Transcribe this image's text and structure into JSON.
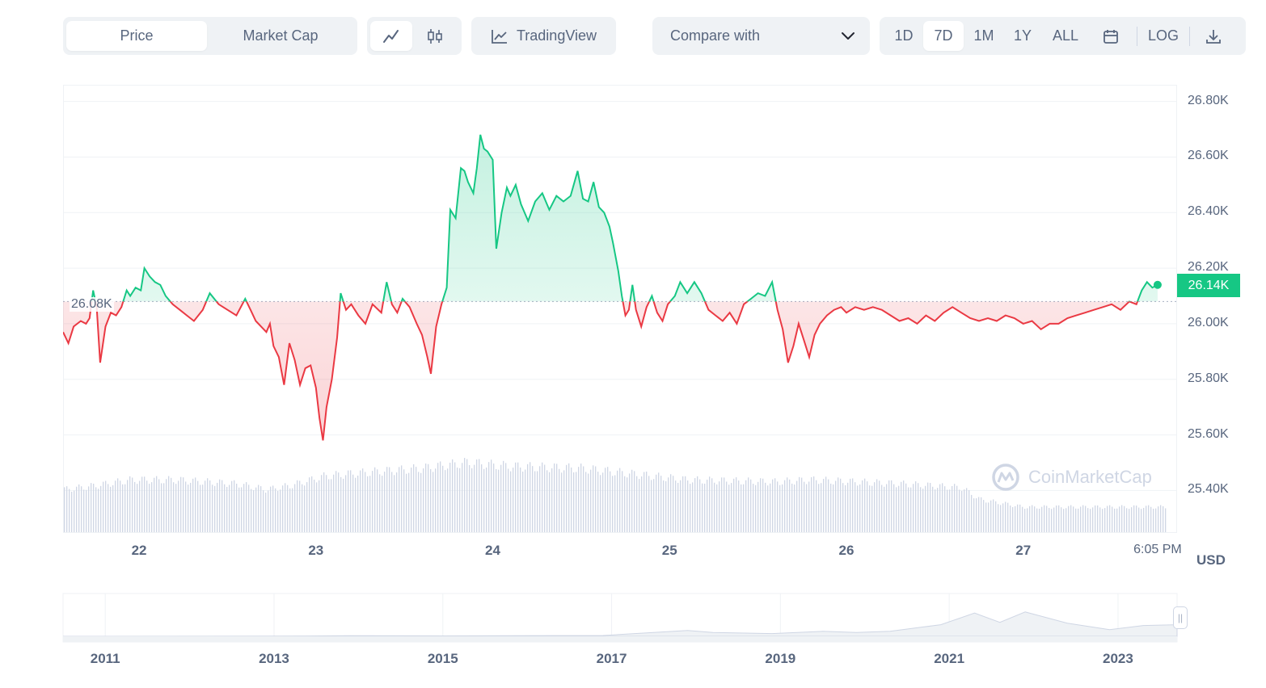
{
  "toolbar": {
    "metric_tabs": [
      {
        "label": "Price",
        "active": true
      },
      {
        "label": "Market Cap",
        "active": false
      }
    ],
    "chart_types": [
      {
        "icon": "line-chart-icon",
        "active": true
      },
      {
        "icon": "candlestick-icon",
        "active": false
      }
    ],
    "tradingview_label": "TradingView",
    "compare_label": "Compare with",
    "ranges": [
      {
        "label": "1D",
        "active": false
      },
      {
        "label": "7D",
        "active": true
      },
      {
        "label": "1M",
        "active": false
      },
      {
        "label": "1Y",
        "active": false
      },
      {
        "label": "ALL",
        "active": false
      }
    ],
    "log_label": "LOG"
  },
  "watermark": "CoinMarketCap",
  "current_price_label": "26.14K",
  "reference_price_label": "26.08K",
  "currency_label": "USD",
  "colors": {
    "up": "#16c784",
    "down": "#ea3943",
    "volume": "#cfd6e4",
    "tag": "#16c784"
  },
  "chart_data": {
    "type": "line",
    "reference_price": 26080,
    "current_price": 26140,
    "ylim": [
      25250,
      26860
    ],
    "yticks": [
      "26.80K",
      "26.60K",
      "26.40K",
      "26.20K",
      "26.00K",
      "25.80K",
      "25.60K",
      "25.40K"
    ],
    "ytick_values": [
      26800,
      26600,
      26400,
      26200,
      26000,
      25800,
      25600,
      25400
    ],
    "xlim": [
      21.57,
      27.87
    ],
    "xticks": [
      {
        "label": "22",
        "t": 22
      },
      {
        "label": "23",
        "t": 23
      },
      {
        "label": "24",
        "t": 24
      },
      {
        "label": "25",
        "t": 25
      },
      {
        "label": "26",
        "t": 26
      },
      {
        "label": "27",
        "t": 27
      },
      {
        "label": "6:05 PM",
        "t": 27.76
      }
    ],
    "series": [
      {
        "points": [
          [
            21.57,
            25970
          ],
          [
            21.6,
            25930
          ],
          [
            21.63,
            25990
          ],
          [
            21.67,
            26010
          ],
          [
            21.7,
            26000
          ],
          [
            21.72,
            26020
          ],
          [
            21.74,
            26120
          ],
          [
            21.76,
            26060
          ],
          [
            21.78,
            25860
          ],
          [
            21.81,
            25990
          ],
          [
            21.84,
            26040
          ],
          [
            21.87,
            26030
          ],
          [
            21.9,
            26060
          ],
          [
            21.93,
            26120
          ],
          [
            21.95,
            26100
          ],
          [
            21.98,
            26130
          ],
          [
            22.01,
            26120
          ],
          [
            22.03,
            26200
          ],
          [
            22.06,
            26170
          ],
          [
            22.09,
            26150
          ],
          [
            22.12,
            26140
          ],
          [
            22.15,
            26100
          ],
          [
            22.19,
            26070
          ],
          [
            22.23,
            26050
          ],
          [
            22.27,
            26030
          ],
          [
            22.31,
            26010
          ],
          [
            22.36,
            26050
          ],
          [
            22.4,
            26110
          ],
          [
            22.45,
            26070
          ],
          [
            22.5,
            26050
          ],
          [
            22.55,
            26030
          ],
          [
            22.6,
            26090
          ],
          [
            22.63,
            26050
          ],
          [
            22.66,
            26010
          ],
          [
            22.69,
            25990
          ],
          [
            22.72,
            25970
          ],
          [
            22.74,
            26000
          ],
          [
            22.76,
            25920
          ],
          [
            22.79,
            25880
          ],
          [
            22.82,
            25780
          ],
          [
            22.85,
            25930
          ],
          [
            22.88,
            25870
          ],
          [
            22.91,
            25780
          ],
          [
            22.94,
            25840
          ],
          [
            22.97,
            25850
          ],
          [
            23.0,
            25770
          ],
          [
            23.02,
            25660
          ],
          [
            23.04,
            25580
          ],
          [
            23.06,
            25700
          ],
          [
            23.09,
            25800
          ],
          [
            23.12,
            25950
          ],
          [
            23.14,
            26110
          ],
          [
            23.17,
            26050
          ],
          [
            23.2,
            26070
          ],
          [
            23.24,
            26030
          ],
          [
            23.28,
            26000
          ],
          [
            23.32,
            26070
          ],
          [
            23.37,
            26040
          ],
          [
            23.4,
            26150
          ],
          [
            23.43,
            26070
          ],
          [
            23.46,
            26040
          ],
          [
            23.49,
            26090
          ],
          [
            23.53,
            26060
          ],
          [
            23.57,
            26000
          ],
          [
            23.6,
            25960
          ],
          [
            23.63,
            25880
          ],
          [
            23.65,
            25820
          ],
          [
            23.68,
            25990
          ],
          [
            23.71,
            26070
          ],
          [
            23.74,
            26130
          ],
          [
            23.76,
            26410
          ],
          [
            23.79,
            26380
          ],
          [
            23.82,
            26560
          ],
          [
            23.84,
            26550
          ],
          [
            23.86,
            26510
          ],
          [
            23.89,
            26470
          ],
          [
            23.91,
            26560
          ],
          [
            23.93,
            26680
          ],
          [
            23.95,
            26630
          ],
          [
            23.97,
            26620
          ],
          [
            24.0,
            26590
          ],
          [
            24.02,
            26270
          ],
          [
            24.05,
            26400
          ],
          [
            24.08,
            26490
          ],
          [
            24.1,
            26460
          ],
          [
            24.13,
            26500
          ],
          [
            24.16,
            26430
          ],
          [
            24.2,
            26370
          ],
          [
            24.24,
            26440
          ],
          [
            24.28,
            26470
          ],
          [
            24.32,
            26410
          ],
          [
            24.36,
            26460
          ],
          [
            24.4,
            26440
          ],
          [
            24.44,
            26460
          ],
          [
            24.48,
            26550
          ],
          [
            24.51,
            26450
          ],
          [
            24.54,
            26440
          ],
          [
            24.57,
            26510
          ],
          [
            24.6,
            26420
          ],
          [
            24.63,
            26400
          ],
          [
            24.66,
            26350
          ],
          [
            24.68,
            26290
          ],
          [
            24.71,
            26190
          ],
          [
            24.73,
            26100
          ],
          [
            24.75,
            26030
          ],
          [
            24.77,
            26050
          ],
          [
            24.79,
            26140
          ],
          [
            24.81,
            26050
          ],
          [
            24.84,
            25990
          ],
          [
            24.87,
            26060
          ],
          [
            24.9,
            26100
          ],
          [
            24.93,
            26040
          ],
          [
            24.96,
            26010
          ],
          [
            24.99,
            26070
          ],
          [
            25.03,
            26100
          ],
          [
            25.06,
            26150
          ],
          [
            25.1,
            26110
          ],
          [
            25.14,
            26150
          ],
          [
            25.18,
            26110
          ],
          [
            25.22,
            26050
          ],
          [
            25.26,
            26030
          ],
          [
            25.3,
            26010
          ],
          [
            25.34,
            26040
          ],
          [
            25.38,
            26000
          ],
          [
            25.42,
            26070
          ],
          [
            25.46,
            26090
          ],
          [
            25.5,
            26110
          ],
          [
            25.54,
            26100
          ],
          [
            25.58,
            26150
          ],
          [
            25.61,
            26050
          ],
          [
            25.64,
            25980
          ],
          [
            25.67,
            25860
          ],
          [
            25.7,
            25920
          ],
          [
            25.73,
            26000
          ],
          [
            25.76,
            25940
          ],
          [
            25.79,
            25880
          ],
          [
            25.82,
            25960
          ],
          [
            25.85,
            26000
          ],
          [
            25.89,
            26030
          ],
          [
            25.93,
            26050
          ],
          [
            25.97,
            26060
          ],
          [
            26.0,
            26040
          ],
          [
            26.05,
            26060
          ],
          [
            26.1,
            26050
          ],
          [
            26.15,
            26060
          ],
          [
            26.2,
            26050
          ],
          [
            26.25,
            26030
          ],
          [
            26.3,
            26010
          ],
          [
            26.35,
            26020
          ],
          [
            26.4,
            26000
          ],
          [
            26.45,
            26030
          ],
          [
            26.5,
            26010
          ],
          [
            26.55,
            26040
          ],
          [
            26.6,
            26060
          ],
          [
            26.65,
            26040
          ],
          [
            26.7,
            26020
          ],
          [
            26.75,
            26010
          ],
          [
            26.8,
            26020
          ],
          [
            26.85,
            26010
          ],
          [
            26.9,
            26030
          ],
          [
            26.95,
            26020
          ],
          [
            27.0,
            26000
          ],
          [
            27.05,
            26010
          ],
          [
            27.1,
            25980
          ],
          [
            27.15,
            26000
          ],
          [
            27.2,
            26000
          ],
          [
            27.25,
            26020
          ],
          [
            27.3,
            26030
          ],
          [
            27.35,
            26040
          ],
          [
            27.4,
            26050
          ],
          [
            27.45,
            26060
          ],
          [
            27.5,
            26070
          ],
          [
            27.55,
            26050
          ],
          [
            27.6,
            26080
          ],
          [
            27.64,
            26070
          ],
          [
            27.67,
            26120
          ],
          [
            27.7,
            26150
          ],
          [
            27.73,
            26130
          ],
          [
            27.76,
            26140
          ]
        ]
      }
    ],
    "volume": {
      "ylim": [
        0,
        100
      ],
      "levels": [
        [
          21.57,
          22
        ],
        [
          21.75,
          24
        ],
        [
          21.95,
          27
        ],
        [
          22.2,
          27
        ],
        [
          22.55,
          25
        ],
        [
          22.72,
          22
        ],
        [
          22.85,
          24
        ],
        [
          23.05,
          29
        ],
        [
          23.3,
          31
        ],
        [
          23.6,
          33
        ],
        [
          23.85,
          36
        ],
        [
          24.1,
          34
        ],
        [
          24.5,
          33
        ],
        [
          24.8,
          30
        ],
        [
          25.1,
          27
        ],
        [
          25.6,
          26
        ],
        [
          25.8,
          27
        ],
        [
          26.3,
          25
        ],
        [
          26.65,
          23
        ],
        [
          26.75,
          17
        ],
        [
          27.0,
          13
        ],
        [
          27.87,
          13
        ]
      ]
    },
    "navigator": {
      "years": [
        "2011",
        "2013",
        "2015",
        "2017",
        "2019",
        "2021",
        "2023"
      ],
      "year_values": [
        2011,
        2013,
        2015,
        2017,
        2019,
        2021,
        2023
      ],
      "xlim": [
        2010.5,
        2023.7
      ],
      "points": [
        [
          2010.5,
          0
        ],
        [
          2013.0,
          0.5
        ],
        [
          2013.9,
          1.5
        ],
        [
          2015.0,
          1
        ],
        [
          2016.9,
          2
        ],
        [
          2017.9,
          15
        ],
        [
          2018.2,
          10
        ],
        [
          2018.9,
          7
        ],
        [
          2019.5,
          13
        ],
        [
          2019.9,
          10
        ],
        [
          2020.3,
          13
        ],
        [
          2020.9,
          30
        ],
        [
          2021.3,
          60
        ],
        [
          2021.6,
          36
        ],
        [
          2021.9,
          63
        ],
        [
          2022.4,
          34
        ],
        [
          2022.9,
          17
        ],
        [
          2023.3,
          28
        ],
        [
          2023.7,
          30
        ]
      ]
    }
  }
}
